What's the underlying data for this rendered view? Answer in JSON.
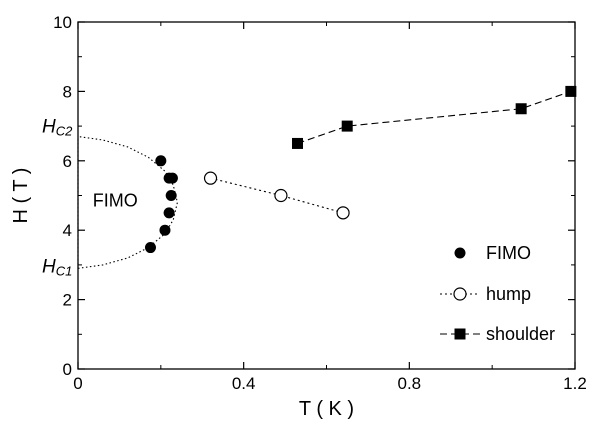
{
  "chart_data": {
    "type": "scatter",
    "xlabel": "T ( K )",
    "ylabel": "H ( T )",
    "xlim": [
      0,
      1.2
    ],
    "ylim": [
      0,
      10
    ],
    "x_ticks": [
      "0",
      "0.4",
      "0.8",
      "1.2"
    ],
    "y_ticks": [
      "0",
      "2",
      "4",
      "6",
      "8",
      "10"
    ],
    "grid": false,
    "legend_position": "bottom-right",
    "series": [
      {
        "name": "FIMO",
        "marker": "filled-circle",
        "line": "none",
        "x": [
          0.175,
          0.2,
          0.21,
          0.22,
          0.225,
          0.228,
          0.22
        ],
        "y": [
          3.5,
          6.0,
          4.0,
          4.5,
          5.0,
          5.5,
          5.5
        ]
      },
      {
        "name": "hump",
        "marker": "open-circle",
        "line": "dotted",
        "x": [
          0.32,
          0.49,
          0.64
        ],
        "y": [
          5.5,
          5.0,
          4.5
        ]
      },
      {
        "name": "shoulder",
        "marker": "filled-square",
        "line": "dashed",
        "x": [
          0.53,
          0.65,
          1.07,
          1.19
        ],
        "y": [
          6.5,
          7.0,
          7.5,
          8.0
        ]
      }
    ],
    "phase_boundary": {
      "style": "dotted",
      "x": [
        0.0,
        0.06,
        0.12,
        0.17,
        0.21,
        0.23,
        0.24,
        0.23,
        0.21,
        0.17,
        0.12,
        0.06,
        0.0
      ],
      "y": [
        2.9,
        3.0,
        3.2,
        3.5,
        3.9,
        4.3,
        4.8,
        5.3,
        5.7,
        6.1,
        6.4,
        6.6,
        6.7
      ]
    },
    "annotations": {
      "region": {
        "text": "FIMO",
        "x": 0.09,
        "y": 4.85
      },
      "hc2": {
        "main": "H",
        "sub": "C2",
        "y": 6.7
      },
      "hc1": {
        "main": "H",
        "sub": "C1",
        "y": 2.9
      }
    }
  }
}
